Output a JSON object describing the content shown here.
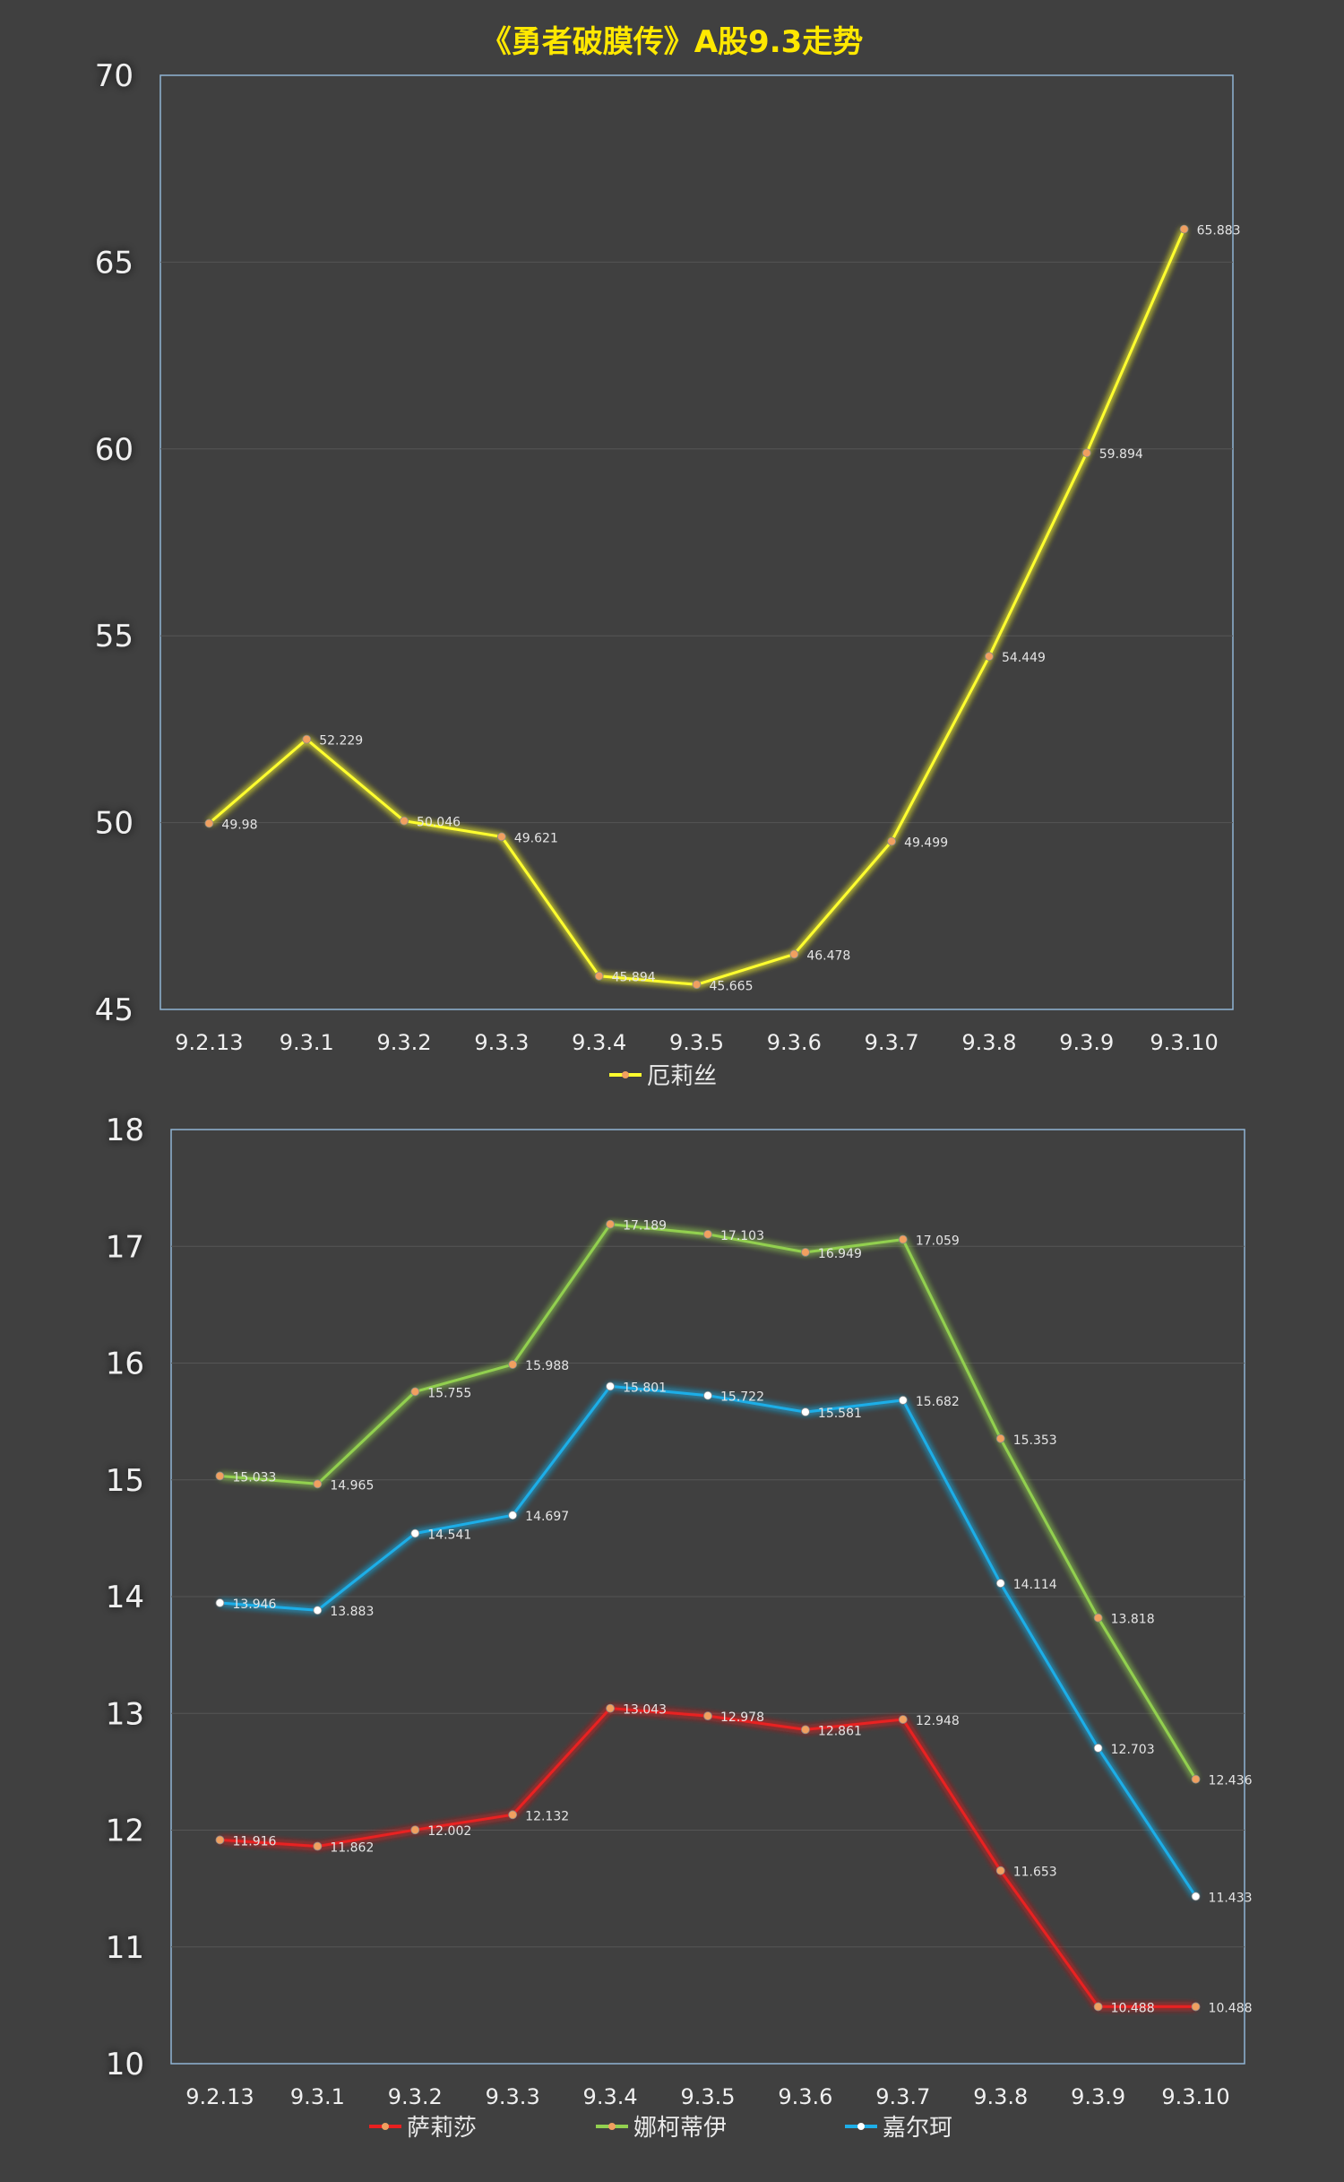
{
  "chart_data": [
    {
      "type": "line",
      "title": "《勇者破膜传》A股9.3走势",
      "xlabel": "",
      "ylabel": "",
      "categories": [
        "9.2.13",
        "9.3.1",
        "9.3.2",
        "9.3.3",
        "9.3.4",
        "9.3.5",
        "9.3.6",
        "9.3.7",
        "9.3.8",
        "9.3.9",
        "9.3.10"
      ],
      "ylim": [
        45,
        70
      ],
      "yticks": [
        45,
        50,
        55,
        60,
        65,
        70
      ],
      "grid": true,
      "legend_position": "bottom",
      "series": [
        {
          "name": "厄莉丝",
          "color": "#ffff2e",
          "marker_color": "#f0a060",
          "values": [
            49.98,
            52.229,
            50.046,
            49.621,
            45.894,
            45.665,
            46.478,
            49.499,
            54.449,
            59.894,
            65.883
          ],
          "labels": [
            "49.98",
            "52.229",
            "50.046",
            "49.621",
            "45.894",
            "45.665",
            "46.478",
            "49.499",
            "54.449",
            "59.894",
            "65.883"
          ]
        }
      ]
    },
    {
      "type": "line",
      "title": "",
      "xlabel": "",
      "ylabel": "",
      "categories": [
        "9.2.13",
        "9.3.1",
        "9.3.2",
        "9.3.3",
        "9.3.4",
        "9.3.5",
        "9.3.6",
        "9.3.7",
        "9.3.8",
        "9.3.9",
        "9.3.10"
      ],
      "ylim": [
        10,
        18
      ],
      "yticks": [
        10,
        11,
        12,
        13,
        14,
        15,
        16,
        17,
        18
      ],
      "grid": true,
      "legend_position": "bottom",
      "series": [
        {
          "name": "萨莉莎",
          "color": "#e82020",
          "marker_color": "#f0a060",
          "values": [
            11.916,
            11.862,
            12.002,
            12.132,
            13.043,
            12.978,
            12.861,
            12.948,
            11.653,
            10.488,
            10.488
          ],
          "labels": [
            "11.916",
            "11.862",
            "12.002",
            "12.132",
            "13.043",
            "12.978",
            "12.861",
            "12.948",
            "11.653",
            "10.488",
            "10.488"
          ]
        },
        {
          "name": "娜柯蒂伊",
          "color": "#92d050",
          "marker_color": "#f0a060",
          "values": [
            15.033,
            14.965,
            15.755,
            15.988,
            17.189,
            17.103,
            16.949,
            17.059,
            15.353,
            13.818,
            12.436
          ],
          "labels": [
            "15.033",
            "14.965",
            "15.755",
            "15.988",
            "17.189",
            "17.103",
            "16.949",
            "17.059",
            "15.353",
            "13.818",
            "12.436"
          ]
        },
        {
          "name": "嘉尔珂",
          "color": "#1eaee8",
          "marker_color": "#ffffff",
          "values": [
            13.946,
            13.883,
            14.541,
            14.697,
            15.801,
            15.722,
            15.581,
            15.682,
            14.114,
            12.703,
            11.433
          ],
          "labels": [
            "13.946",
            "13.883",
            "14.541",
            "14.697",
            "15.801",
            "15.722",
            "15.581",
            "15.682",
            "14.114",
            "12.703",
            "11.433"
          ]
        }
      ]
    }
  ]
}
